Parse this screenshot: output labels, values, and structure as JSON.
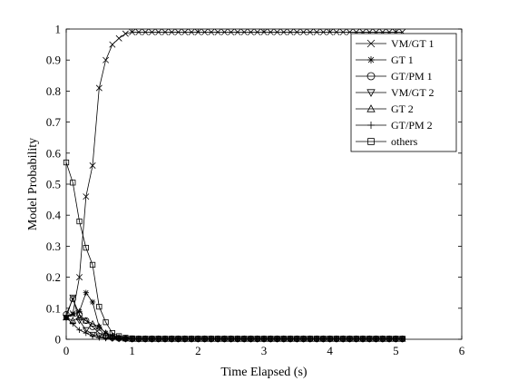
{
  "chart_data": {
    "type": "line",
    "xlabel": "Time Elapsed (s)",
    "ylabel": "Model Probability",
    "xlim": [
      0,
      6
    ],
    "ylim": [
      0,
      1
    ],
    "xticks": [
      0,
      1,
      2,
      3,
      4,
      5,
      6
    ],
    "yticks": [
      0,
      0.1,
      0.2,
      0.3,
      0.4,
      0.5,
      0.6,
      0.7,
      0.8,
      0.9,
      1
    ],
    "ytick_labels": [
      "0",
      "0.1",
      "0.2",
      "0.3",
      "0.4",
      "0.5",
      "0.6",
      "0.7",
      "0.8",
      "0.9",
      "1"
    ],
    "grid": false,
    "legend_position": "top-right",
    "x_sampling": {
      "start": 0,
      "step": 0.1,
      "count": 52
    },
    "series": [
      {
        "name": "VM/GT 1",
        "marker": "x",
        "values": [
          0.07,
          0.083,
          0.2,
          0.46,
          0.56,
          0.81,
          0.9,
          0.95,
          0.97,
          0.985,
          0.99,
          0.99,
          0.99,
          0.99,
          0.99,
          0.99,
          0.99,
          0.99,
          0.99,
          0.99,
          0.99,
          0.99,
          0.99,
          0.99,
          0.99,
          0.99,
          0.99,
          0.99,
          0.99,
          0.99,
          0.99,
          0.99,
          0.99,
          0.99,
          0.99,
          0.99,
          0.99,
          0.99,
          0.99,
          0.99,
          0.99,
          0.99,
          0.99,
          0.99,
          0.99,
          0.99,
          0.99,
          0.99,
          0.99,
          0.99,
          0.99,
          0.99
        ]
      },
      {
        "name": "GT 1",
        "marker": "asterisk",
        "values": [
          0.07,
          0.08,
          0.09,
          0.15,
          0.12,
          0.04,
          0.02,
          0.01,
          0.005,
          0.002,
          0.001,
          0.001,
          0.001,
          0.001,
          0.001,
          0.001,
          0.001,
          0.001,
          0.001,
          0.001,
          0.001,
          0.001,
          0.001,
          0.001,
          0.001,
          0.001,
          0.001,
          0.001,
          0.001,
          0.001,
          0.001,
          0.001,
          0.001,
          0.001,
          0.001,
          0.001,
          0.001,
          0.001,
          0.001,
          0.001,
          0.001,
          0.001,
          0.001,
          0.001,
          0.001,
          0.001,
          0.001,
          0.001,
          0.001,
          0.001,
          0.001,
          0.001
        ]
      },
      {
        "name": "GT/PM 1",
        "marker": "circle",
        "values": [
          0.08,
          0.13,
          0.08,
          0.06,
          0.04,
          0.02,
          0.01,
          0.005,
          0.003,
          0.002,
          0.001,
          0.001,
          0.001,
          0.001,
          0.001,
          0.001,
          0.001,
          0.001,
          0.001,
          0.001,
          0.001,
          0.001,
          0.001,
          0.001,
          0.001,
          0.001,
          0.001,
          0.001,
          0.001,
          0.001,
          0.001,
          0.001,
          0.001,
          0.001,
          0.001,
          0.001,
          0.001,
          0.001,
          0.001,
          0.001,
          0.001,
          0.001,
          0.001,
          0.001,
          0.001,
          0.001,
          0.001,
          0.001,
          0.001,
          0.001,
          0.001,
          0.001
        ]
      },
      {
        "name": "VM/GT 2",
        "marker": "triangle-down",
        "values": [
          0.07,
          0.135,
          0.06,
          0.03,
          0.015,
          0.01,
          0.005,
          0.003,
          0.002,
          0.001,
          0.001,
          0.001,
          0.001,
          0.001,
          0.001,
          0.001,
          0.001,
          0.001,
          0.001,
          0.001,
          0.001,
          0.001,
          0.001,
          0.001,
          0.001,
          0.001,
          0.001,
          0.001,
          0.001,
          0.001,
          0.001,
          0.001,
          0.001,
          0.001,
          0.001,
          0.001,
          0.001,
          0.001,
          0.001,
          0.001,
          0.001,
          0.001,
          0.001,
          0.001,
          0.001,
          0.001,
          0.001,
          0.001,
          0.001,
          0.001,
          0.001,
          0.001
        ]
      },
      {
        "name": "GT 2",
        "marker": "triangle-up",
        "values": [
          0.07,
          0.06,
          0.07,
          0.06,
          0.05,
          0.04,
          0.02,
          0.01,
          0.005,
          0.002,
          0.001,
          0.001,
          0.001,
          0.001,
          0.001,
          0.001,
          0.001,
          0.001,
          0.001,
          0.001,
          0.001,
          0.001,
          0.001,
          0.001,
          0.001,
          0.001,
          0.001,
          0.001,
          0.001,
          0.001,
          0.001,
          0.001,
          0.001,
          0.001,
          0.001,
          0.001,
          0.001,
          0.001,
          0.001,
          0.001,
          0.001,
          0.001,
          0.001,
          0.001,
          0.001,
          0.001,
          0.001,
          0.001,
          0.001,
          0.001,
          0.001,
          0.001
        ]
      },
      {
        "name": "GT/PM 2",
        "marker": "plus",
        "values": [
          0.07,
          0.05,
          0.03,
          0.02,
          0.01,
          0.005,
          0.003,
          0.002,
          0.001,
          0.001,
          0.001,
          0.001,
          0.001,
          0.001,
          0.001,
          0.001,
          0.001,
          0.001,
          0.001,
          0.001,
          0.001,
          0.001,
          0.001,
          0.001,
          0.001,
          0.001,
          0.001,
          0.001,
          0.001,
          0.001,
          0.001,
          0.001,
          0.001,
          0.001,
          0.001,
          0.001,
          0.001,
          0.001,
          0.001,
          0.001,
          0.001,
          0.001,
          0.001,
          0.001,
          0.001,
          0.001,
          0.001,
          0.001,
          0.001,
          0.001,
          0.001,
          0.001
        ]
      },
      {
        "name": "others",
        "marker": "square",
        "values": [
          0.57,
          0.505,
          0.38,
          0.295,
          0.24,
          0.105,
          0.055,
          0.02,
          0.01,
          0.005,
          0.003,
          0.002,
          0.002,
          0.002,
          0.002,
          0.002,
          0.002,
          0.002,
          0.002,
          0.002,
          0.002,
          0.002,
          0.002,
          0.002,
          0.002,
          0.002,
          0.002,
          0.002,
          0.002,
          0.002,
          0.002,
          0.002,
          0.002,
          0.002,
          0.002,
          0.002,
          0.002,
          0.002,
          0.002,
          0.002,
          0.002,
          0.002,
          0.002,
          0.002,
          0.002,
          0.002,
          0.002,
          0.002,
          0.002,
          0.002,
          0.002,
          0.002
        ]
      }
    ]
  }
}
